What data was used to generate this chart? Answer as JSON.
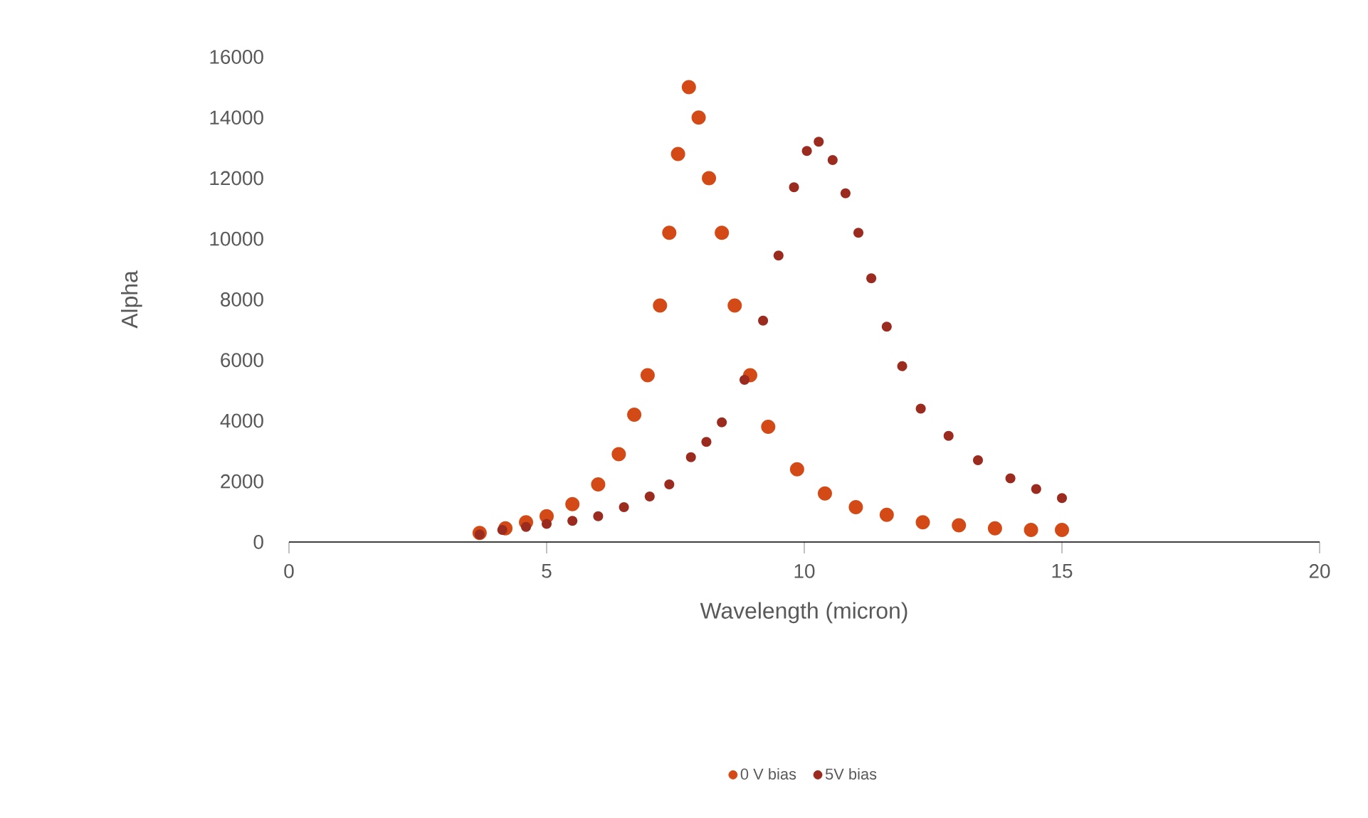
{
  "chart_data": {
    "type": "scatter",
    "xlabel": "Wavelength (micron)",
    "ylabel": "Alpha",
    "xlim": [
      0,
      20
    ],
    "xticks": [
      0,
      5,
      10,
      15,
      20
    ],
    "ylim": [
      0,
      16000
    ],
    "yticks": [
      0,
      2000,
      4000,
      6000,
      8000,
      10000,
      12000,
      14000,
      16000
    ],
    "grid": false,
    "legend": "bottom",
    "marker": "circle",
    "series": [
      {
        "name": "0 V bias",
        "color": "#d34a17",
        "x": [
          3.7,
          4.2,
          4.6,
          5.0,
          5.5,
          6.0,
          6.4,
          6.7,
          6.96,
          7.2,
          7.38,
          7.55,
          7.76,
          7.95,
          8.15,
          8.4,
          8.65,
          8.95,
          9.3,
          9.86,
          10.4,
          11.0,
          11.6,
          12.3,
          13.0,
          13.7,
          14.4,
          15.0
        ],
        "values": [
          300,
          450,
          650,
          850,
          1250,
          1900,
          2900,
          4200,
          5500,
          7800,
          10200,
          12800,
          15000,
          14000,
          12000,
          10200,
          7800,
          5500,
          3800,
          2400,
          1600,
          1150,
          900,
          650,
          550,
          450,
          400,
          400
        ]
      },
      {
        "name": "5V bias",
        "color": "#9b2b1f",
        "x": [
          3.7,
          4.14,
          4.6,
          5.0,
          5.5,
          6.0,
          6.5,
          7.0,
          7.38,
          7.8,
          8.1,
          8.4,
          8.84,
          9.2,
          9.5,
          9.8,
          10.05,
          10.28,
          10.55,
          10.8,
          11.05,
          11.3,
          11.6,
          11.9,
          12.26,
          12.8,
          13.37,
          14.0,
          14.5,
          15.0
        ],
        "values": [
          250,
          400,
          500,
          600,
          700,
          850,
          1150,
          1500,
          1900,
          2800,
          3300,
          3950,
          5350,
          7300,
          9450,
          11700,
          12900,
          13200,
          12600,
          11500,
          10200,
          8700,
          7100,
          5800,
          4400,
          3500,
          2700,
          2100,
          1750,
          1450
        ]
      }
    ]
  }
}
